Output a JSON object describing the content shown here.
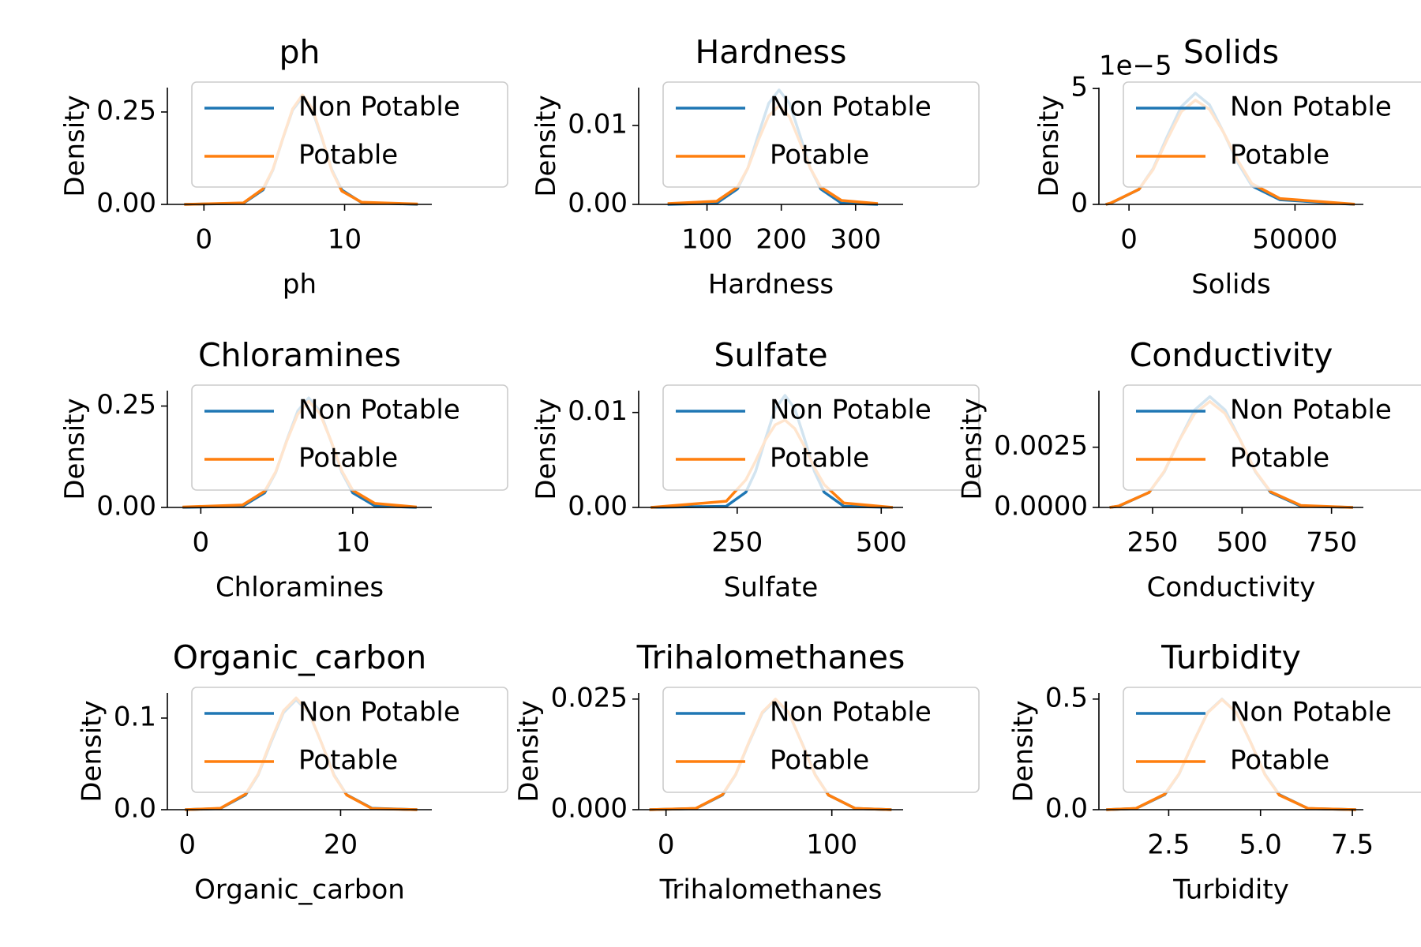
{
  "chart_data": [
    {
      "type": "line",
      "title": "ph",
      "xlabel": "ph",
      "ylabel": "Density",
      "legend": "upper center",
      "x": [
        -1.4,
        2.8,
        4.2,
        4.9,
        5.6,
        6.3,
        7,
        7.7,
        8.4,
        9.1,
        9.8,
        11.2,
        15.2
      ],
      "series": [
        {
          "name": "Non Potable",
          "color": "#1f77b4",
          "values": [
            0,
            0.003,
            0.039,
            0.093,
            0.177,
            0.255,
            0.29,
            0.255,
            0.177,
            0.093,
            0.039,
            0.005,
            0
          ]
        },
        {
          "name": "Potable",
          "color": "#ff7f0e",
          "values": [
            0,
            0.004,
            0.042,
            0.095,
            0.178,
            0.258,
            0.296,
            0.26,
            0.18,
            0.09,
            0.036,
            0.006,
            0.001
          ]
        }
      ],
      "xlim": [
        -2.6,
        16.2
      ],
      "ylim": [
        0,
        0.316
      ],
      "xticks": [
        0,
        10
      ],
      "yticks": [
        {
          "value": 0,
          "label": "0.00"
        },
        0.25
      ]
    },
    {
      "type": "line",
      "title": "Hardness",
      "xlabel": "Hardness",
      "ylabel": "Density",
      "legend": "upper center",
      "x": [
        47,
        113,
        141,
        155,
        169,
        183,
        197,
        211,
        225,
        239,
        253,
        281,
        330
      ],
      "series": [
        {
          "name": "Non Potable",
          "color": "#1f77b4",
          "values": [
            0,
            0.00016,
            0.00196,
            0.0046,
            0.0088,
            0.0128,
            0.0145,
            0.0128,
            0.0088,
            0.0046,
            0.00196,
            0.00016,
            0
          ]
        },
        {
          "name": "Potable",
          "color": "#ff7f0e",
          "values": [
            0.0001,
            0.0004,
            0.0022,
            0.0046,
            0.0081,
            0.0112,
            0.0125,
            0.0111,
            0.0079,
            0.0046,
            0.0022,
            0.0005,
            0.0001
          ]
        }
      ],
      "xlim": [
        8,
        364
      ],
      "ylim": [
        0,
        0.0148
      ],
      "xticks": [
        100,
        200,
        300
      ],
      "yticks": [
        {
          "value": 0,
          "label": "0.00"
        },
        0.01
      ]
    },
    {
      "type": "line",
      "title": "Solids",
      "xlabel": "Solids",
      "ylabel": "Density",
      "legend": "upper center",
      "y_offset_label": "1e−5",
      "x": [
        -7000,
        -5500,
        3000,
        7250,
        11500,
        15750,
        20000,
        24250,
        28500,
        32750,
        37000,
        45500,
        68000
      ],
      "series": [
        {
          "name": "Non Potable",
          "color": "#1f77b4",
          "values": [
            0,
            5e-07,
            6.5e-06,
            1.54e-05,
            2.93e-05,
            4.22e-05,
            4.8e-05,
            4.3e-05,
            3.1e-05,
            1.8e-05,
            8e-06,
            2e-06,
            0
          ]
        },
        {
          "name": "Potable",
          "color": "#ff7f0e",
          "values": [
            0,
            6e-07,
            6.5e-06,
            1.5e-05,
            2.8e-05,
            4e-05,
            4.5e-05,
            4.1e-05,
            3.1e-05,
            1.9e-05,
            9e-06,
            2.5e-06,
            1e-07
          ]
        }
      ],
      "xlim": [
        -9066,
        70600
      ],
      "ylim": [
        0,
        5.04e-05
      ],
      "xticks": [
        0,
        50000
      ],
      "yticks": [
        0,
        {
          "value": 5e-05,
          "label": "5"
        }
      ]
    },
    {
      "type": "line",
      "title": "Chloramines",
      "xlabel": "Chloramines",
      "ylabel": "Density",
      "legend": "upper center",
      "x": [
        -1.2,
        2.75,
        4.2,
        4.93,
        5.65,
        6.38,
        7.1,
        7.83,
        8.55,
        9.28,
        10,
        11.45,
        14.2
      ],
      "series": [
        {
          "name": "Non Potable",
          "color": "#1f77b4",
          "values": [
            0,
            0.003,
            0.036,
            0.086,
            0.165,
            0.238,
            0.27,
            0.238,
            0.165,
            0.086,
            0.036,
            0.004,
            0
          ]
        },
        {
          "name": "Potable",
          "color": "#ff7f0e",
          "values": [
            0.001,
            0.006,
            0.04,
            0.088,
            0.163,
            0.23,
            0.262,
            0.232,
            0.166,
            0.09,
            0.042,
            0.01,
            0.001
          ]
        }
      ],
      "xlim": [
        -2.2,
        15.2
      ],
      "ylim": [
        0,
        0.288
      ],
      "xticks": [
        0,
        10
      ],
      "yticks": [
        {
          "value": 0,
          "label": "0.00"
        },
        0.25
      ]
    },
    {
      "type": "line",
      "title": "Sulfate",
      "xlabel": "Sulfate",
      "ylabel": "Density",
      "legend": "upper center",
      "x": [
        100,
        231,
        265,
        282,
        299,
        316,
        333,
        350,
        367,
        384,
        401,
        435,
        520
      ],
      "series": [
        {
          "name": "Non Potable",
          "color": "#1f77b4",
          "values": [
            0,
            0.00013,
            0.0016,
            0.0038,
            0.0072,
            0.0104,
            0.0118,
            0.0104,
            0.0072,
            0.0038,
            0.0016,
            0.00013,
            0
          ]
        },
        {
          "name": "Potable",
          "color": "#ff7f0e",
          "values": [
            0,
            0.00065,
            0.0029,
            0.0049,
            0.0071,
            0.0087,
            0.0092,
            0.0083,
            0.0064,
            0.0042,
            0.0024,
            0.00047,
            0
          ]
        }
      ],
      "xlim": [
        79,
        538
      ],
      "ylim": [
        0,
        0.0123
      ],
      "xticks": [
        250,
        500
      ],
      "yticks": [
        {
          "value": 0,
          "label": "0.00"
        },
        0.01
      ]
    },
    {
      "type": "line",
      "title": "Conductivity",
      "xlabel": "Conductivity",
      "ylabel": "Density",
      "legend": "upper center",
      "x": [
        130,
        155,
        240,
        282.5,
        325,
        367.5,
        410,
        452.5,
        495,
        537.5,
        580,
        665,
        810
      ],
      "series": [
        {
          "name": "Non Potable",
          "color": "#1f77b4",
          "values": [
            0,
            5e-05,
            0.00062,
            0.00147,
            0.0028,
            0.00405,
            0.0046,
            0.00405,
            0.0028,
            0.00147,
            0.00062,
            5e-05,
            0
          ]
        },
        {
          "name": "Potable",
          "color": "#ff7f0e",
          "values": [
            0,
            6e-05,
            0.00062,
            0.0015,
            0.0028,
            0.0039,
            0.0044,
            0.0039,
            0.0028,
            0.0015,
            0.00065,
            8e-05,
            0
          ]
        }
      ],
      "xlim": [
        100,
        839
      ],
      "ylim": [
        0,
        0.00485
      ],
      "xticks": [
        250,
        500,
        750
      ],
      "yticks": [
        {
          "value": 0,
          "label": "0.0000"
        },
        0.0025
      ]
    },
    {
      "type": "line",
      "title": "Organic_carbon",
      "xlabel": "Organic_carbon",
      "ylabel": "Density",
      "legend": "upper center",
      "x": [
        -0.3,
        4.3,
        7.6,
        9.25,
        10.9,
        12.55,
        14.2,
        15.85,
        17.5,
        19.15,
        20.8,
        24.1,
        30
      ],
      "series": [
        {
          "name": "Non Potable",
          "color": "#1f77b4",
          "values": [
            0,
            0.0013,
            0.0162,
            0.038,
            0.073,
            0.106,
            0.12,
            0.106,
            0.073,
            0.038,
            0.0162,
            0.0015,
            0
          ]
        },
        {
          "name": "Potable",
          "color": "#ff7f0e",
          "values": [
            0,
            0.0015,
            0.017,
            0.039,
            0.075,
            0.108,
            0.122,
            0.107,
            0.073,
            0.037,
            0.016,
            0.0012,
            0
          ]
        }
      ],
      "xlim": [
        -2.6,
        31.9
      ],
      "ylim": [
        0,
        0.1275
      ],
      "xticks": [
        0,
        20
      ],
      "yticks": [
        {
          "value": 0,
          "label": "0.0"
        },
        0.1
      ]
    },
    {
      "type": "line",
      "title": "Trihalomethanes",
      "xlabel": "Trihalomethanes",
      "ylabel": "Density",
      "legend": "upper center",
      "x": [
        -10,
        18,
        34,
        42,
        50,
        58,
        66,
        74,
        82,
        90,
        98,
        114,
        136
      ],
      "series": [
        {
          "name": "Non Potable",
          "color": "#1f77b4",
          "values": [
            0,
            0.00027,
            0.0033,
            0.0079,
            0.0151,
            0.0218,
            0.0248,
            0.0218,
            0.0151,
            0.0079,
            0.0033,
            0.0003,
            0
          ]
        },
        {
          "name": "Potable",
          "color": "#ff7f0e",
          "values": [
            0,
            0.0003,
            0.0034,
            0.008,
            0.0153,
            0.022,
            0.025,
            0.022,
            0.015,
            0.0078,
            0.0033,
            0.0003,
            0
          ]
        }
      ],
      "xlim": [
        -16.5,
        143
      ],
      "ylim": [
        0,
        0.0264
      ],
      "xticks": [
        0,
        100
      ],
      "yticks": [
        {
          "value": 0,
          "label": "0.000"
        },
        0.025
      ]
    },
    {
      "type": "line",
      "title": "Turbidity",
      "xlabel": "Turbidity",
      "ylabel": "Density",
      "legend": "upper center",
      "x": [
        0.8,
        1.61,
        2.39,
        2.78,
        3.17,
        3.56,
        3.95,
        4.34,
        4.73,
        5.12,
        5.51,
        6.29,
        7.6
      ],
      "series": [
        {
          "name": "Non Potable",
          "color": "#1f77b4",
          "values": [
            0,
            0.0055,
            0.068,
            0.16,
            0.305,
            0.44,
            0.5,
            0.44,
            0.305,
            0.16,
            0.068,
            0.0055,
            0
          ]
        },
        {
          "name": "Potable",
          "color": "#ff7f0e",
          "values": [
            0,
            0.006,
            0.07,
            0.162,
            0.305,
            0.438,
            0.498,
            0.44,
            0.305,
            0.158,
            0.066,
            0.006,
            0
          ]
        }
      ],
      "xlim": [
        0.6,
        7.8
      ],
      "ylim": [
        0,
        0.528
      ],
      "xticks": [
        2.5,
        {
          "value": 5,
          "label": "5.0"
        },
        7.5
      ],
      "yticks": [
        {
          "value": 0,
          "label": "0.0"
        },
        0.5
      ]
    }
  ]
}
